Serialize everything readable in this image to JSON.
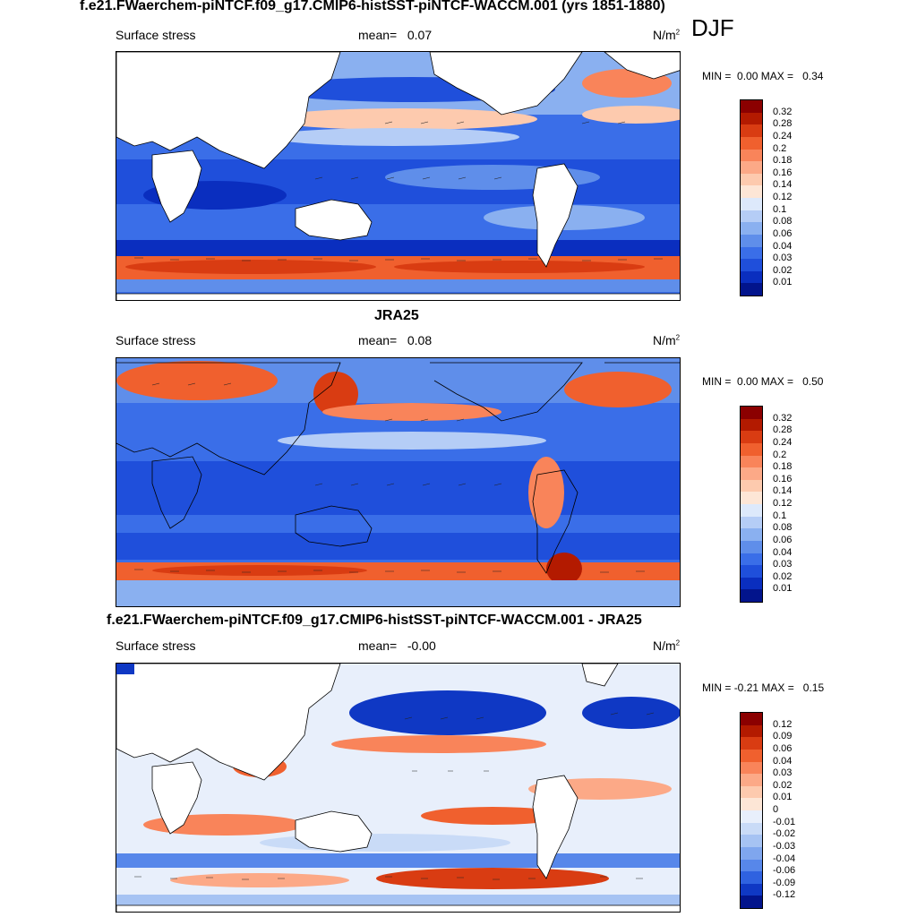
{
  "season": "DJF",
  "panels": [
    {
      "title": "f.e21.FWaerchem-piNTCF.f09_g17.CMIP6-histSST-piNTCF-WACCM.001 (yrs 1851-1880)",
      "variable": "Surface stress",
      "mean_label": "mean=",
      "mean_value": "0.07",
      "units": "N/m",
      "units_exp": "2",
      "min_label": "MIN =",
      "min_value": "0.00",
      "max_label": "MAX =",
      "max_value": "0.34",
      "colorbar": [
        "0.32",
        "0.28",
        "0.24",
        "0.2",
        "0.18",
        "0.16",
        "0.14",
        "0.12",
        "0.1",
        "0.08",
        "0.06",
        "0.04",
        "0.03",
        "0.02",
        "0.01"
      ],
      "colors": [
        "#8b0000",
        "#b31a00",
        "#d93c12",
        "#f0602e",
        "#f9845a",
        "#fca987",
        "#fdcaae",
        "#fde6d6",
        "#dde9fb",
        "#b5cdf6",
        "#8ab0f0",
        "#5f8eea",
        "#3a6ee8",
        "#1f4fdb",
        "#0a2ebf",
        "#02148c"
      ]
    },
    {
      "title": "JRA25",
      "variable": "Surface stress",
      "mean_label": "mean=",
      "mean_value": "0.08",
      "units": "N/m",
      "units_exp": "2",
      "min_label": "MIN =",
      "min_value": "0.00",
      "max_label": "MAX =",
      "max_value": "0.50",
      "colorbar": [
        "0.32",
        "0.28",
        "0.24",
        "0.2",
        "0.18",
        "0.16",
        "0.14",
        "0.12",
        "0.1",
        "0.08",
        "0.06",
        "0.04",
        "0.03",
        "0.02",
        "0.01"
      ],
      "colors": [
        "#8b0000",
        "#b31a00",
        "#d93c12",
        "#f0602e",
        "#f9845a",
        "#fca987",
        "#fdcaae",
        "#fde6d6",
        "#dde9fb",
        "#b5cdf6",
        "#8ab0f0",
        "#5f8eea",
        "#3a6ee8",
        "#1f4fdb",
        "#0a2ebf",
        "#02148c"
      ]
    },
    {
      "title": "f.e21.FWaerchem-piNTCF.f09_g17.CMIP6-histSST-piNTCF-WACCM.001 - JRA25",
      "variable": "Surface stress",
      "mean_label": "mean=",
      "mean_value": "-0.00",
      "units": "N/m",
      "units_exp": "2",
      "min_label": "MIN =",
      "min_value": "-0.21",
      "max_label": "MAX =",
      "max_value": "0.15",
      "colorbar": [
        "0.12",
        "0.09",
        "0.06",
        "0.04",
        "0.03",
        "0.02",
        "0.01",
        "0",
        "-0.01",
        "-0.02",
        "-0.03",
        "-0.04",
        "-0.06",
        "-0.09",
        "-0.12"
      ],
      "colors": [
        "#8b0000",
        "#b31a00",
        "#d93c12",
        "#f0602e",
        "#f9845a",
        "#fca987",
        "#fdcaae",
        "#fde6d6",
        "#e8effb",
        "#c9dbf7",
        "#a6c3f3",
        "#7fa6ee",
        "#5787ea",
        "#2f62e0",
        "#0f38c4",
        "#02148c"
      ]
    }
  ]
}
